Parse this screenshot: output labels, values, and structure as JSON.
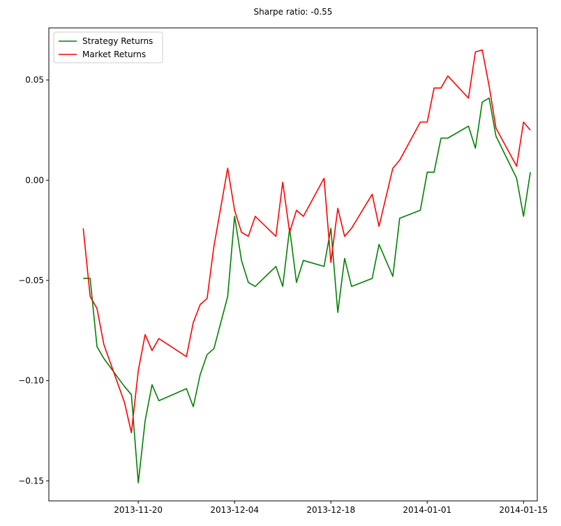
{
  "chart_data": {
    "type": "line",
    "title": "Sharpe ratio: -0.55",
    "xlabel": "",
    "ylabel": "",
    "x_axis_type": "date",
    "xlim": [
      "2013-11-07",
      "2014-01-17"
    ],
    "ylim": [
      -0.16,
      0.076
    ],
    "x_ticks": [
      "2013-11-20",
      "2013-12-04",
      "2013-12-18",
      "2014-01-01",
      "2014-01-15"
    ],
    "y_ticks": [
      0.05,
      0.0,
      -0.05,
      -0.1,
      -0.15
    ],
    "y_tick_labels": [
      "0.05",
      "0.00",
      "−0.05",
      "−0.10",
      "−0.15"
    ],
    "grid": false,
    "legend_position": "upper-left",
    "series": [
      {
        "name": "Strategy Returns",
        "color": "#008000",
        "points": [
          [
            "2013-11-12",
            -0.049
          ],
          [
            "2013-11-13",
            -0.049
          ],
          [
            "2013-11-14",
            -0.083
          ],
          [
            "2013-11-15",
            -0.089
          ],
          [
            "2013-11-18",
            -0.103
          ],
          [
            "2013-11-19",
            -0.107
          ],
          [
            "2013-11-20",
            -0.151
          ],
          [
            "2013-11-21",
            -0.12
          ],
          [
            "2013-11-22",
            -0.102
          ],
          [
            "2013-11-23",
            -0.11
          ],
          [
            "2013-11-27",
            -0.104
          ],
          [
            "2013-11-28",
            -0.113
          ],
          [
            "2013-11-29",
            -0.097
          ],
          [
            "2013-11-30",
            -0.087
          ],
          [
            "2013-12-01",
            -0.084
          ],
          [
            "2013-12-03",
            -0.058
          ],
          [
            "2013-12-04",
            -0.018
          ],
          [
            "2013-12-05",
            -0.04
          ],
          [
            "2013-12-06",
            -0.051
          ],
          [
            "2013-12-07",
            -0.053
          ],
          [
            "2013-12-10",
            -0.043
          ],
          [
            "2013-12-11",
            -0.053
          ],
          [
            "2013-12-12",
            -0.024
          ],
          [
            "2013-12-13",
            -0.051
          ],
          [
            "2013-12-14",
            -0.04
          ],
          [
            "2013-12-17",
            -0.043
          ],
          [
            "2013-12-18",
            -0.024
          ],
          [
            "2013-12-19",
            -0.066
          ],
          [
            "2013-12-20",
            -0.039
          ],
          [
            "2013-12-21",
            -0.053
          ],
          [
            "2013-12-24",
            -0.049
          ],
          [
            "2013-12-25",
            -0.032
          ],
          [
            "2013-12-27",
            -0.048
          ],
          [
            "2013-12-28",
            -0.019
          ],
          [
            "2013-12-31",
            -0.015
          ],
          [
            "2014-01-01",
            0.004
          ],
          [
            "2014-01-02",
            0.004
          ],
          [
            "2014-01-03",
            0.021
          ],
          [
            "2014-01-04",
            0.021
          ],
          [
            "2014-01-07",
            0.027
          ],
          [
            "2014-01-08",
            0.016
          ],
          [
            "2014-01-09",
            0.039
          ],
          [
            "2014-01-10",
            0.041
          ],
          [
            "2014-01-11",
            0.022
          ],
          [
            "2014-01-14",
            0.001
          ],
          [
            "2014-01-15",
            -0.018
          ],
          [
            "2014-01-16",
            0.004
          ]
        ]
      },
      {
        "name": "Market Returns",
        "color": "#ff0000",
        "points": [
          [
            "2013-11-12",
            -0.024
          ],
          [
            "2013-11-13",
            -0.058
          ],
          [
            "2013-11-14",
            -0.064
          ],
          [
            "2013-11-15",
            -0.082
          ],
          [
            "2013-11-18",
            -0.111
          ],
          [
            "2013-11-19",
            -0.126
          ],
          [
            "2013-11-20",
            -0.095
          ],
          [
            "2013-11-21",
            -0.077
          ],
          [
            "2013-11-22",
            -0.085
          ],
          [
            "2013-11-23",
            -0.079
          ],
          [
            "2013-11-27",
            -0.088
          ],
          [
            "2013-11-28",
            -0.071
          ],
          [
            "2013-11-29",
            -0.062
          ],
          [
            "2013-11-30",
            -0.059
          ],
          [
            "2013-12-01",
            -0.033
          ],
          [
            "2013-12-03",
            0.006
          ],
          [
            "2013-12-04",
            -0.015
          ],
          [
            "2013-12-05",
            -0.026
          ],
          [
            "2013-12-06",
            -0.028
          ],
          [
            "2013-12-07",
            -0.018
          ],
          [
            "2013-12-10",
            -0.028
          ],
          [
            "2013-12-11",
            -0.001
          ],
          [
            "2013-12-12",
            -0.026
          ],
          [
            "2013-12-13",
            -0.015
          ],
          [
            "2013-12-14",
            -0.018
          ],
          [
            "2013-12-17",
            0.001
          ],
          [
            "2013-12-18",
            -0.041
          ],
          [
            "2013-12-19",
            -0.014
          ],
          [
            "2013-12-20",
            -0.028
          ],
          [
            "2013-12-21",
            -0.024
          ],
          [
            "2013-12-24",
            -0.007
          ],
          [
            "2013-12-25",
            -0.023
          ],
          [
            "2013-12-27",
            0.006
          ],
          [
            "2013-12-28",
            0.01
          ],
          [
            "2013-12-31",
            0.029
          ],
          [
            "2014-01-01",
            0.029
          ],
          [
            "2014-01-02",
            0.046
          ],
          [
            "2014-01-03",
            0.046
          ],
          [
            "2014-01-04",
            0.052
          ],
          [
            "2014-01-07",
            0.041
          ],
          [
            "2014-01-08",
            0.064
          ],
          [
            "2014-01-09",
            0.065
          ],
          [
            "2014-01-10",
            0.047
          ],
          [
            "2014-01-11",
            0.026
          ],
          [
            "2014-01-14",
            0.007
          ],
          [
            "2014-01-15",
            0.029
          ],
          [
            "2014-01-16",
            0.025
          ]
        ]
      }
    ]
  }
}
